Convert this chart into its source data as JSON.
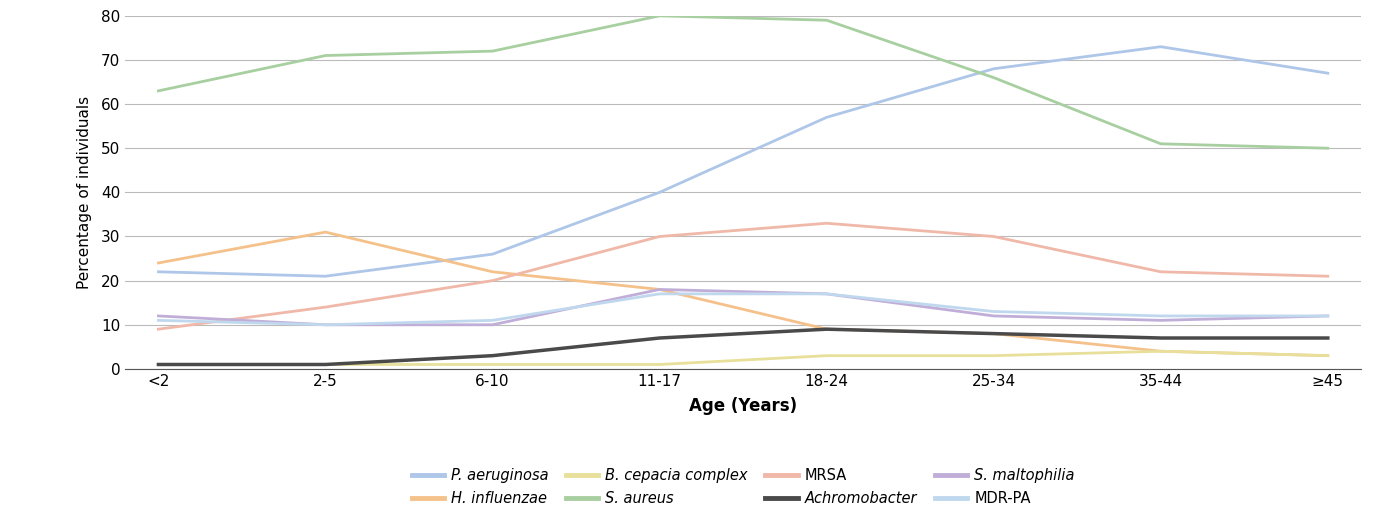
{
  "x_labels": [
    "<2",
    "2-5",
    "6-10",
    "11-17",
    "18-24",
    "25-34",
    "35-44",
    "≥45"
  ],
  "series": {
    "P. aeruginosa": {
      "values": [
        22,
        21,
        26,
        40,
        57,
        68,
        73,
        67
      ],
      "color": "#aec6e8",
      "linewidth": 2.0
    },
    "H. influenzae": {
      "values": [
        24,
        31,
        22,
        18,
        9,
        8,
        4,
        3
      ],
      "color": "#f5c18a",
      "linewidth": 2.0
    },
    "B. cepacia complex": {
      "values": [
        1,
        1,
        1,
        1,
        3,
        3,
        4,
        3
      ],
      "color": "#e8e09a",
      "linewidth": 2.0
    },
    "S. aureus": {
      "values": [
        63,
        71,
        72,
        80,
        79,
        66,
        51,
        50
      ],
      "color": "#a8cfa0",
      "linewidth": 2.0
    },
    "MRSA": {
      "values": [
        9,
        14,
        20,
        30,
        33,
        30,
        22,
        21
      ],
      "color": "#f0b8a8",
      "linewidth": 2.0
    },
    "Achromobacter": {
      "values": [
        1,
        1,
        3,
        7,
        9,
        8,
        7,
        7
      ],
      "color": "#4a4a4a",
      "linewidth": 2.5
    },
    "S. maltophilia": {
      "values": [
        12,
        10,
        10,
        18,
        17,
        12,
        11,
        12
      ],
      "color": "#c0aed8",
      "linewidth": 2.0
    },
    "MDR-PA": {
      "values": [
        11,
        10,
        11,
        17,
        17,
        13,
        12,
        12
      ],
      "color": "#c0d8ee",
      "linewidth": 2.0
    }
  },
  "ylabel": "Percentage of individuals",
  "xlabel": "Age (Years)",
  "ylim": [
    0,
    80
  ],
  "yticks": [
    0,
    10,
    20,
    30,
    40,
    50,
    60,
    70,
    80
  ],
  "background_color": "#ffffff",
  "grid_color": "#bbbbbb",
  "legend_row1": [
    "P. aeruginosa",
    "H. influenzae",
    "B. cepacia complex",
    "S. aureus"
  ],
  "legend_row2": [
    "MRSA",
    "Achromobacter",
    "S. maltophilia",
    "MDR-PA"
  ],
  "legend_italic": {
    "P. aeruginosa": true,
    "H. influenzae": true,
    "B. cepacia complex": true,
    "S. aureus": true,
    "MRSA": false,
    "Achromobacter": true,
    "S. maltophilia": true,
    "MDR-PA": false
  }
}
